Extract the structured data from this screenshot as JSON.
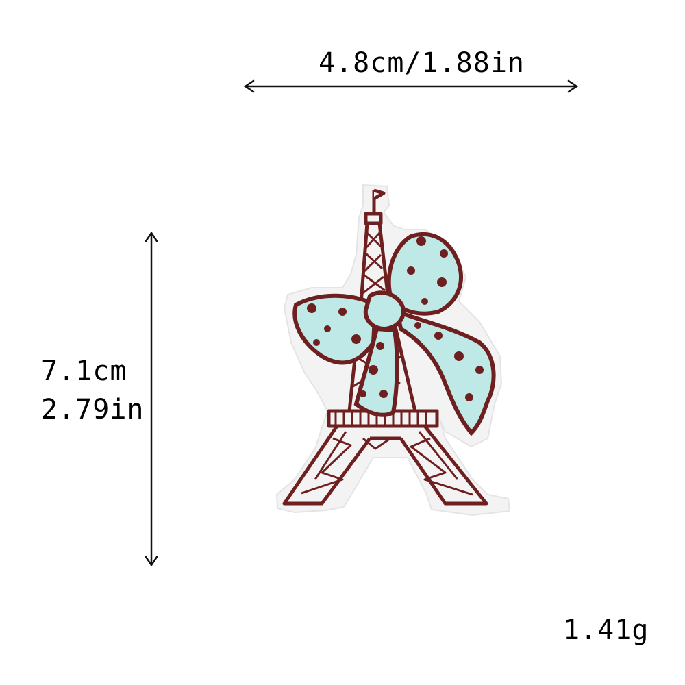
{
  "dimensions": {
    "width_label": "4.8cm/1.88in",
    "height_cm": "7.1cm",
    "height_in": "2.79in",
    "weight": "1.41g"
  },
  "product": {
    "subject": "eiffel-tower-with-bow embroidered patch",
    "colors": {
      "thread_brown": "#6e1f1f",
      "bow_blue": "#bfe9e6",
      "felt_backing": "#f3f3f3"
    }
  }
}
